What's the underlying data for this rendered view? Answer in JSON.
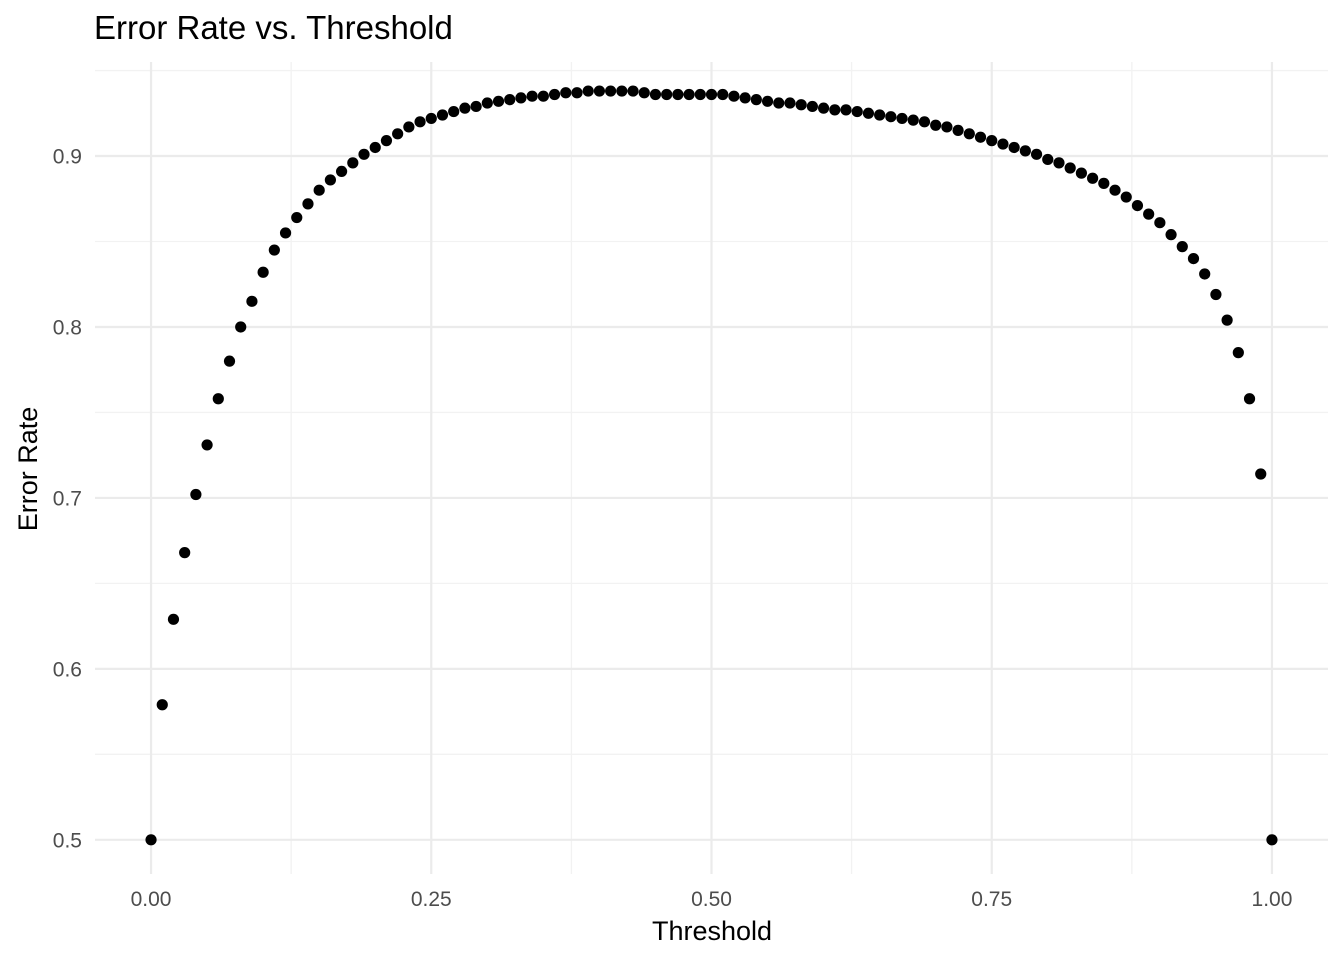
{
  "chart_data": {
    "type": "scatter",
    "title": "Error Rate vs. Threshold",
    "xlabel": "Threshold",
    "ylabel": "Error Rate",
    "xlim": [
      -0.05,
      1.05
    ],
    "ylim": [
      0.48,
      0.955
    ],
    "x_ticks": [
      0.0,
      0.25,
      0.5,
      0.75,
      1.0
    ],
    "x_tick_labels": [
      "0.00",
      "0.25",
      "0.50",
      "0.75",
      "1.00"
    ],
    "y_ticks": [
      0.5,
      0.6,
      0.7,
      0.8,
      0.9
    ],
    "y_tick_labels": [
      "0.5",
      "0.6",
      "0.7",
      "0.8",
      "0.9"
    ],
    "grid": true,
    "point_color": "#000000",
    "series": [
      {
        "x": [
          0.0,
          0.01,
          0.02,
          0.03,
          0.04,
          0.05,
          0.06,
          0.07,
          0.08,
          0.09,
          0.1,
          0.11,
          0.12,
          0.13,
          0.14,
          0.15,
          0.16,
          0.17,
          0.18,
          0.19,
          0.2,
          0.21,
          0.22,
          0.23,
          0.24,
          0.25,
          0.26,
          0.27,
          0.28,
          0.29,
          0.3,
          0.31,
          0.32,
          0.33,
          0.34,
          0.35,
          0.36,
          0.37,
          0.38,
          0.39,
          0.4,
          0.41,
          0.42,
          0.43,
          0.44,
          0.45,
          0.46,
          0.47,
          0.48,
          0.49,
          0.5,
          0.51,
          0.52,
          0.53,
          0.54,
          0.55,
          0.56,
          0.57,
          0.58,
          0.59,
          0.6,
          0.61,
          0.62,
          0.63,
          0.64,
          0.65,
          0.66,
          0.67,
          0.68,
          0.69,
          0.7,
          0.71,
          0.72,
          0.73,
          0.74,
          0.75,
          0.76,
          0.77,
          0.78,
          0.79,
          0.8,
          0.81,
          0.82,
          0.83,
          0.84,
          0.85,
          0.86,
          0.87,
          0.88,
          0.89,
          0.9,
          0.91,
          0.92,
          0.93,
          0.94,
          0.95,
          0.96,
          0.97,
          0.98,
          0.99,
          1.0
        ],
        "y": [
          0.5,
          0.579,
          0.629,
          0.668,
          0.702,
          0.731,
          0.758,
          0.78,
          0.8,
          0.815,
          0.832,
          0.845,
          0.855,
          0.864,
          0.872,
          0.88,
          0.886,
          0.891,
          0.896,
          0.901,
          0.905,
          0.909,
          0.913,
          0.917,
          0.92,
          0.922,
          0.924,
          0.926,
          0.928,
          0.929,
          0.931,
          0.932,
          0.933,
          0.934,
          0.935,
          0.935,
          0.936,
          0.937,
          0.937,
          0.938,
          0.938,
          0.938,
          0.938,
          0.938,
          0.937,
          0.936,
          0.936,
          0.936,
          0.936,
          0.936,
          0.936,
          0.936,
          0.935,
          0.934,
          0.933,
          0.932,
          0.931,
          0.931,
          0.93,
          0.929,
          0.928,
          0.927,
          0.927,
          0.926,
          0.925,
          0.924,
          0.923,
          0.922,
          0.921,
          0.92,
          0.918,
          0.917,
          0.915,
          0.913,
          0.911,
          0.909,
          0.907,
          0.905,
          0.903,
          0.901,
          0.898,
          0.896,
          0.893,
          0.89,
          0.887,
          0.884,
          0.88,
          0.876,
          0.871,
          0.866,
          0.861,
          0.854,
          0.847,
          0.84,
          0.831,
          0.819,
          0.804,
          0.785,
          0.758,
          0.714,
          0.5
        ]
      }
    ]
  }
}
